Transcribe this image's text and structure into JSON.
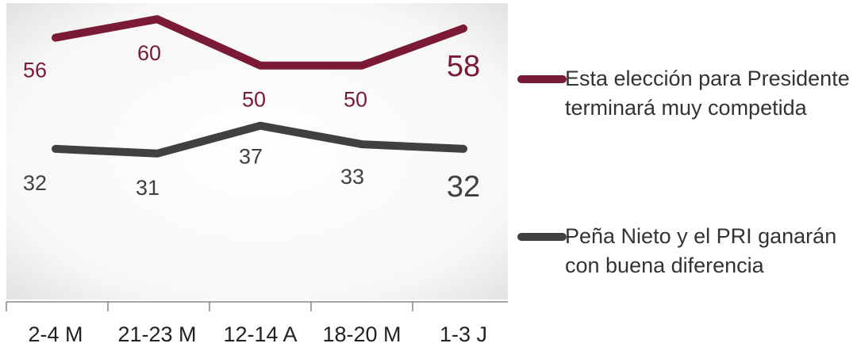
{
  "chart_data": {
    "type": "line",
    "categories": [
      "2-4 M",
      "21-23 M",
      "12-14 A",
      "18-20 M",
      "1-3 J"
    ],
    "series": [
      {
        "name": "Esta elección para Presidente terminará muy competida",
        "values": [
          56,
          60,
          50,
          50,
          58
        ],
        "color": "#7b1a34"
      },
      {
        "name": "Peña Nieto y el PRI ganarán con buena diferencia",
        "values": [
          32,
          31,
          37,
          33,
          32
        ],
        "color": "#404040"
      }
    ],
    "ylim": [
      0,
      65
    ],
    "grid": false,
    "legend": "right"
  }
}
